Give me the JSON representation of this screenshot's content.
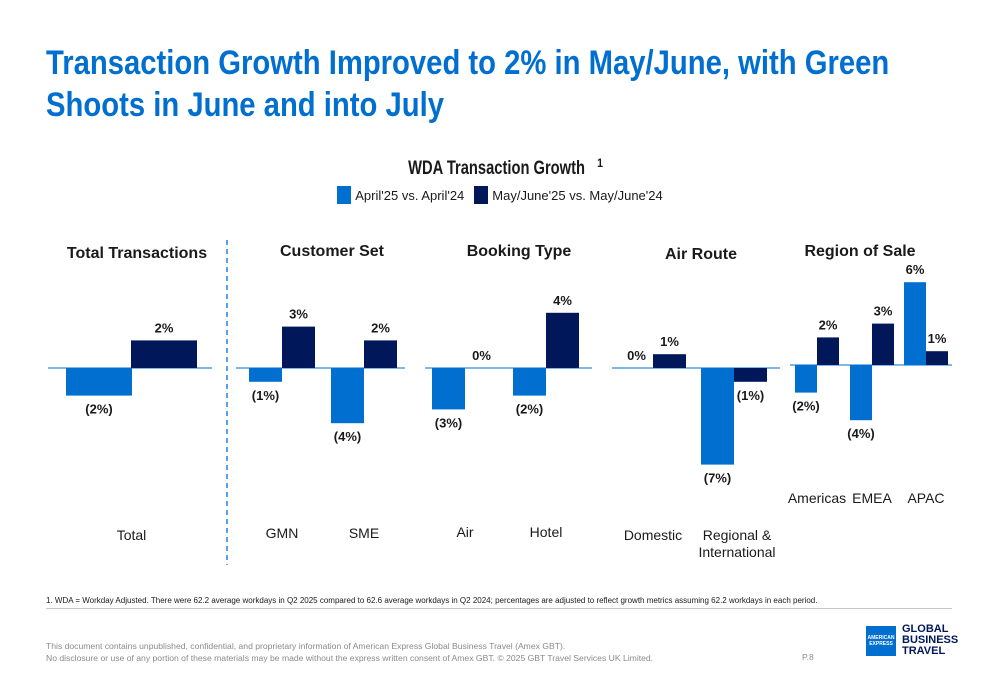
{
  "title": {
    "line1": "Transaction Growth Improved to 2% in May/June, with Green",
    "line2": "Shoots in June and into July"
  },
  "chart_data": {
    "type": "bar",
    "title": "WDA Transaction Growth",
    "title_superscript": "1",
    "legend": {
      "position": "top-center",
      "entries": [
        {
          "label": "April'25 vs. April'24",
          "color": "#006fcf"
        },
        {
          "label": "May/June'25 vs. May/June'24",
          "color": "#00175a"
        }
      ]
    },
    "value_unit": "%",
    "panels": [
      {
        "title": "Total Transactions",
        "categories": [
          "Total"
        ],
        "series": [
          {
            "values": [
              -2
            ],
            "labels": [
              "(2%)"
            ]
          },
          {
            "values": [
              2
            ],
            "labels": [
              "2%"
            ]
          }
        ]
      },
      {
        "title": "Customer Set",
        "categories": [
          "GMN",
          "SME"
        ],
        "series": [
          {
            "values": [
              -1,
              -4
            ],
            "labels": [
              "(1%)",
              "(4%)"
            ]
          },
          {
            "values": [
              3,
              2
            ],
            "labels": [
              "3%",
              "2%"
            ]
          }
        ]
      },
      {
        "title": "Booking Type",
        "categories": [
          "Air",
          "Hotel"
        ],
        "series": [
          {
            "values": [
              -3,
              -2
            ],
            "labels": [
              "(3%)",
              "(2%)"
            ]
          },
          {
            "values": [
              0,
              4
            ],
            "labels": [
              "0%",
              "4%"
            ]
          }
        ]
      },
      {
        "title": "Air Route",
        "categories": [
          "Domestic",
          "Regional & International"
        ],
        "series": [
          {
            "values": [
              0,
              -7
            ],
            "labels": [
              "0%",
              "(7%)"
            ]
          },
          {
            "values": [
              1,
              -1
            ],
            "labels": [
              "1%",
              "(1%)"
            ]
          }
        ]
      },
      {
        "title": "Region of Sale",
        "categories": [
          "Americas",
          "EMEA",
          "APAC"
        ],
        "series": [
          {
            "values": [
              -2,
              -4,
              6
            ],
            "labels": [
              "(2%)",
              "(4%)",
              "6%"
            ]
          },
          {
            "values": [
              2,
              3,
              1
            ],
            "labels": [
              "2%",
              "3%",
              "1%"
            ]
          }
        ]
      }
    ]
  },
  "footnote": "1. WDA = Workday Adjusted. There were 62.2 average workdays in Q2 2025 compared to 62.6 average workdays in Q2 2024; percentages are adjusted to reflect growth metrics assuming 62.2 workdays in each period.",
  "confidential": {
    "line1": "This document contains unpublished, confidential, and proprietary information of American Express Global Business Travel (Amex GBT).",
    "line2": "No disclosure or use of any portion of these materials may be made without the express written consent of Amex GBT. © 2025 GBT Travel Services UK Limited."
  },
  "page_number": "P.8",
  "logo": {
    "box_line1": "AMERICAN",
    "box_line2": "EXPRESS",
    "line1": "GLOBAL",
    "line2": "BUSINESS",
    "line3": "TRAVEL"
  },
  "colors": {
    "title": "#006fcf",
    "series_a": "#006fcf",
    "series_b": "#00175a",
    "divider": "#006fcf"
  }
}
